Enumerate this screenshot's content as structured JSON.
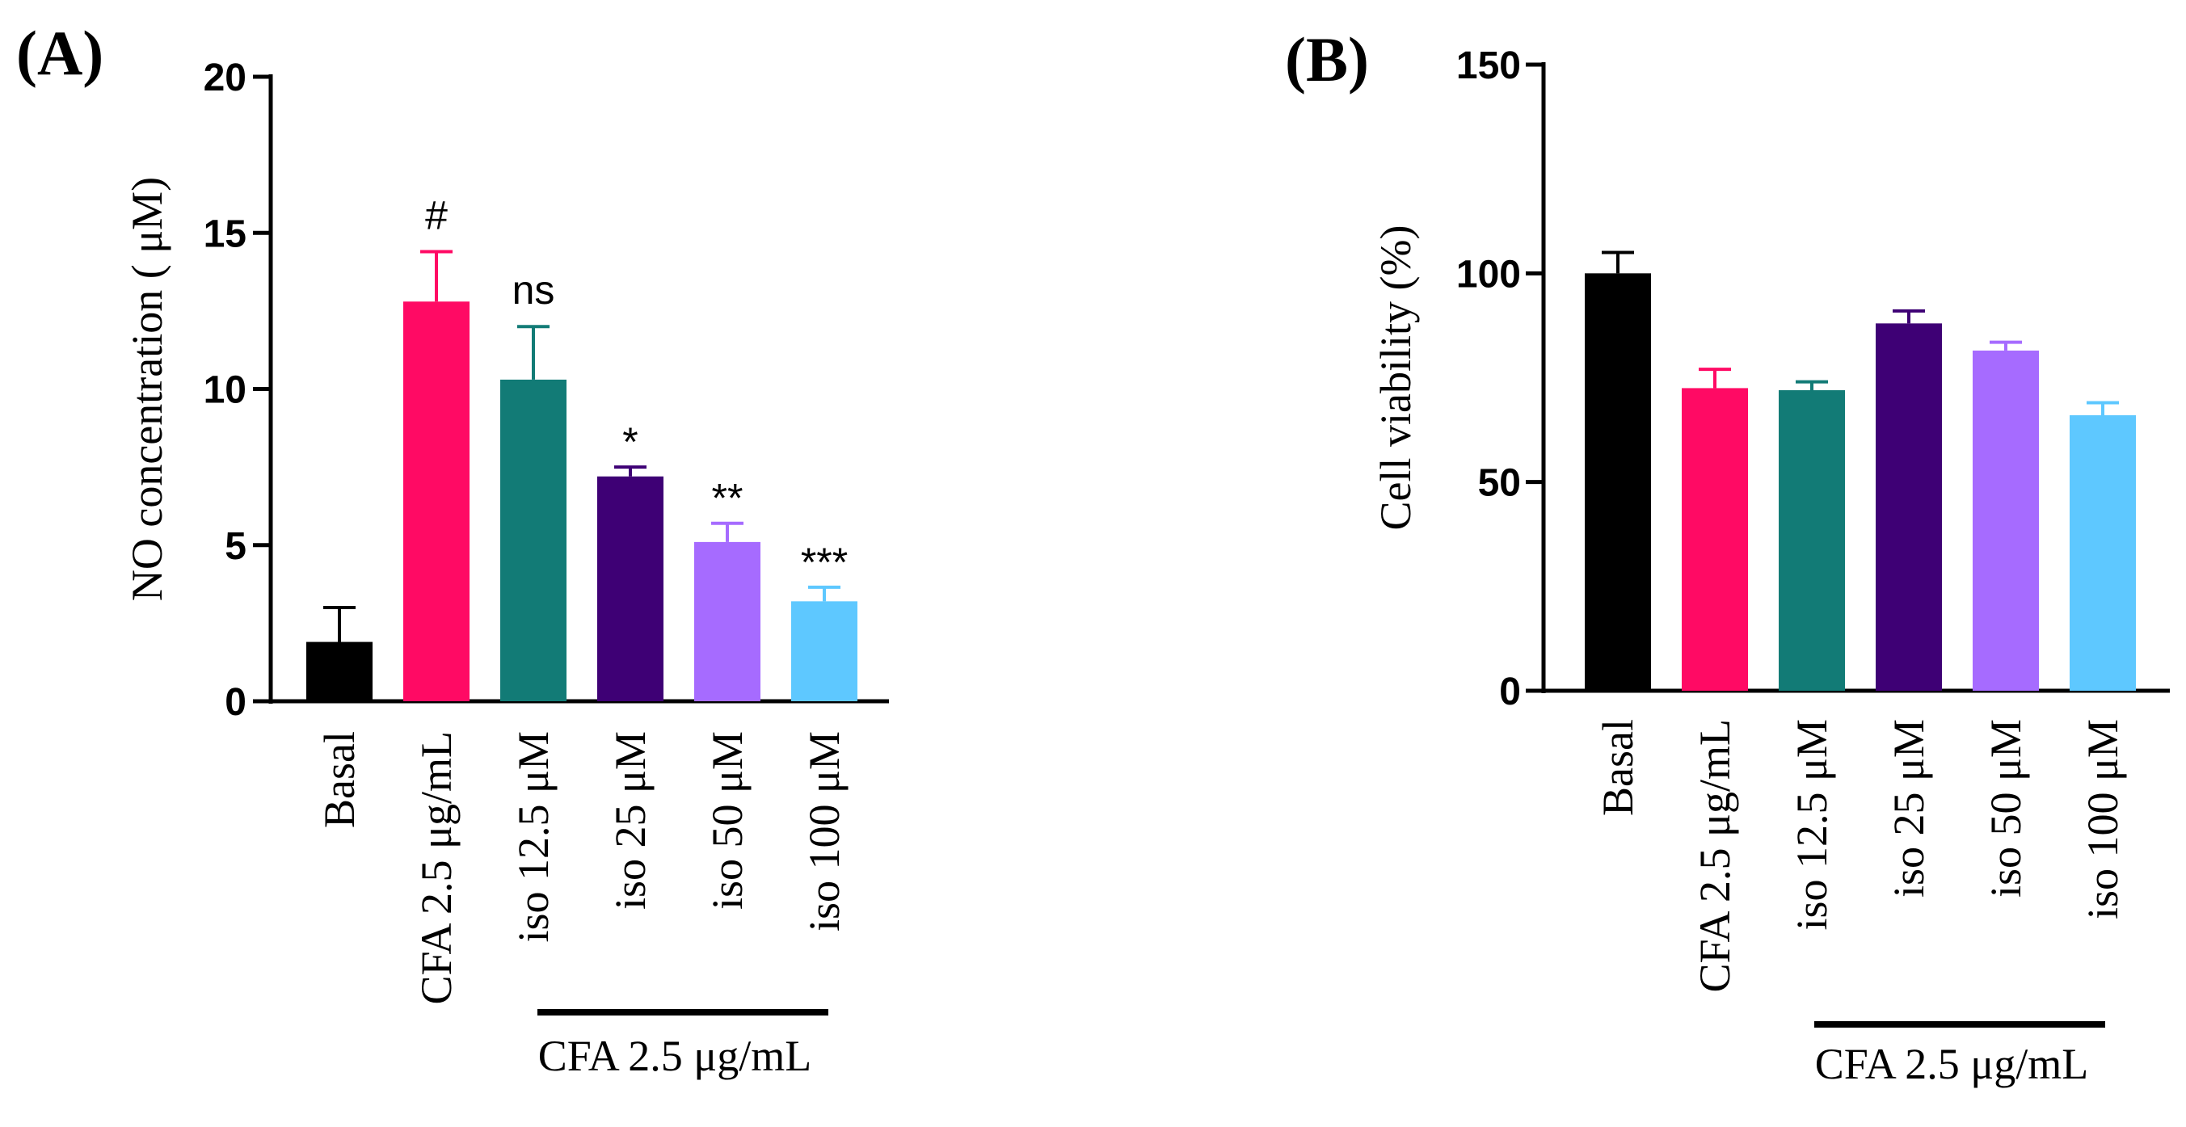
{
  "chart_data": [
    {
      "type": "bar",
      "panel_label": "(A)",
      "categories": [
        "Basal",
        "CFA 2.5 μg/mL",
        "iso 12.5 μM",
        "iso 25 μM",
        "iso 50 μM",
        "iso 100 μM"
      ],
      "values": [
        1.9,
        12.8,
        10.3,
        7.2,
        5.1,
        3.2
      ],
      "errors": [
        1.1,
        1.6,
        1.7,
        0.3,
        0.6,
        0.45
      ],
      "colors": [
        "#000000",
        "#ff0a64",
        "#127b76",
        "#3e0075",
        "#a66bff",
        "#5ec8ff"
      ],
      "significance": [
        "",
        "#",
        "ns",
        "*",
        "**",
        "***"
      ],
      "ylabel": "NO concentration ( μM)",
      "ylim": [
        0,
        20
      ],
      "yticks": [
        "0",
        "5",
        "10",
        "15",
        "20"
      ],
      "group_label": "CFA 2.5 μg/mL"
    },
    {
      "type": "bar",
      "panel_label": "(B)",
      "categories": [
        "Basal",
        "CFA 2.5 μg/mL",
        "iso 12.5 μM",
        "iso 25 μM",
        "iso 50 μM",
        "iso 100 μM"
      ],
      "values": [
        100,
        72.5,
        72,
        88,
        81.5,
        66
      ],
      "errors": [
        5,
        4.5,
        2,
        3,
        2,
        3
      ],
      "colors": [
        "#000000",
        "#ff0a64",
        "#127b76",
        "#3e0075",
        "#a66bff",
        "#5ec8ff"
      ],
      "significance": [
        "",
        "",
        "",
        "",
        "",
        ""
      ],
      "ylabel": "Cell viability (%)",
      "ylim": [
        0,
        150
      ],
      "yticks": [
        "0",
        "50",
        "100",
        "150"
      ],
      "group_label": "CFA 2.5 μg/mL"
    }
  ]
}
